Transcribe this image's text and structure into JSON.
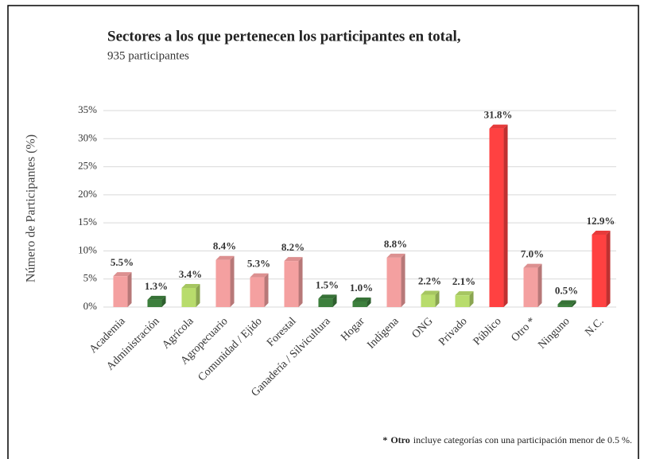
{
  "chart_data": {
    "type": "bar",
    "title": "Sectores a los que pertenecen los participantes en total,",
    "subtitle": "935 participantes",
    "y_label": "Número de Participantes (%)",
    "categories": [
      "Academia",
      "Administración",
      "Agrícola",
      "Agropecuario",
      "Comunidad / Ejido",
      "Forestal",
      "Ganadería / Silvicultura",
      "Hogar",
      "Indígena",
      "ONG",
      "Privado",
      "Público",
      "Otro *",
      "Ninguno",
      "N.C."
    ],
    "values": [
      5.5,
      1.3,
      3.4,
      8.4,
      5.3,
      8.2,
      1.5,
      1.0,
      8.8,
      2.2,
      2.1,
      31.8,
      7.0,
      0.5,
      12.9
    ],
    "value_labels": [
      "5.5%",
      "1.3%",
      "3.4%",
      "8.4%",
      "5.3%",
      "8.2%",
      "1.5%",
      "1.0%",
      "8.8%",
      "2.2%",
      "2.1%",
      "31.8%",
      "7.0%",
      "0.5%",
      "12.9%"
    ],
    "colors": [
      "#f4a0a0",
      "#3d7f3d",
      "#b8dc6c",
      "#f4a0a0",
      "#f4a0a0",
      "#f4a0a0",
      "#3d7f3d",
      "#3d7f3d",
      "#f4a0a0",
      "#b8dc6c",
      "#b8dc6c",
      "#ff4141",
      "#f4a0a0",
      "#3d7f3d",
      "#ff4141"
    ],
    "ylim": [
      0,
      35
    ],
    "yticks": [
      {
        "value": 0,
        "label": "0%"
      },
      {
        "value": 5,
        "label": "5%"
      },
      {
        "value": 10,
        "label": "10%"
      },
      {
        "value": 15,
        "label": "15%"
      },
      {
        "value": 20,
        "label": "20%"
      },
      {
        "value": 25,
        "label": "25%"
      },
      {
        "value": 30,
        "label": "30%"
      },
      {
        "value": 35,
        "label": "35%"
      }
    ],
    "grid": true,
    "note": {
      "prefix": "*",
      "bold": "Otro",
      "text": "incluye categorías con una participación menor de 0.5 %."
    }
  }
}
